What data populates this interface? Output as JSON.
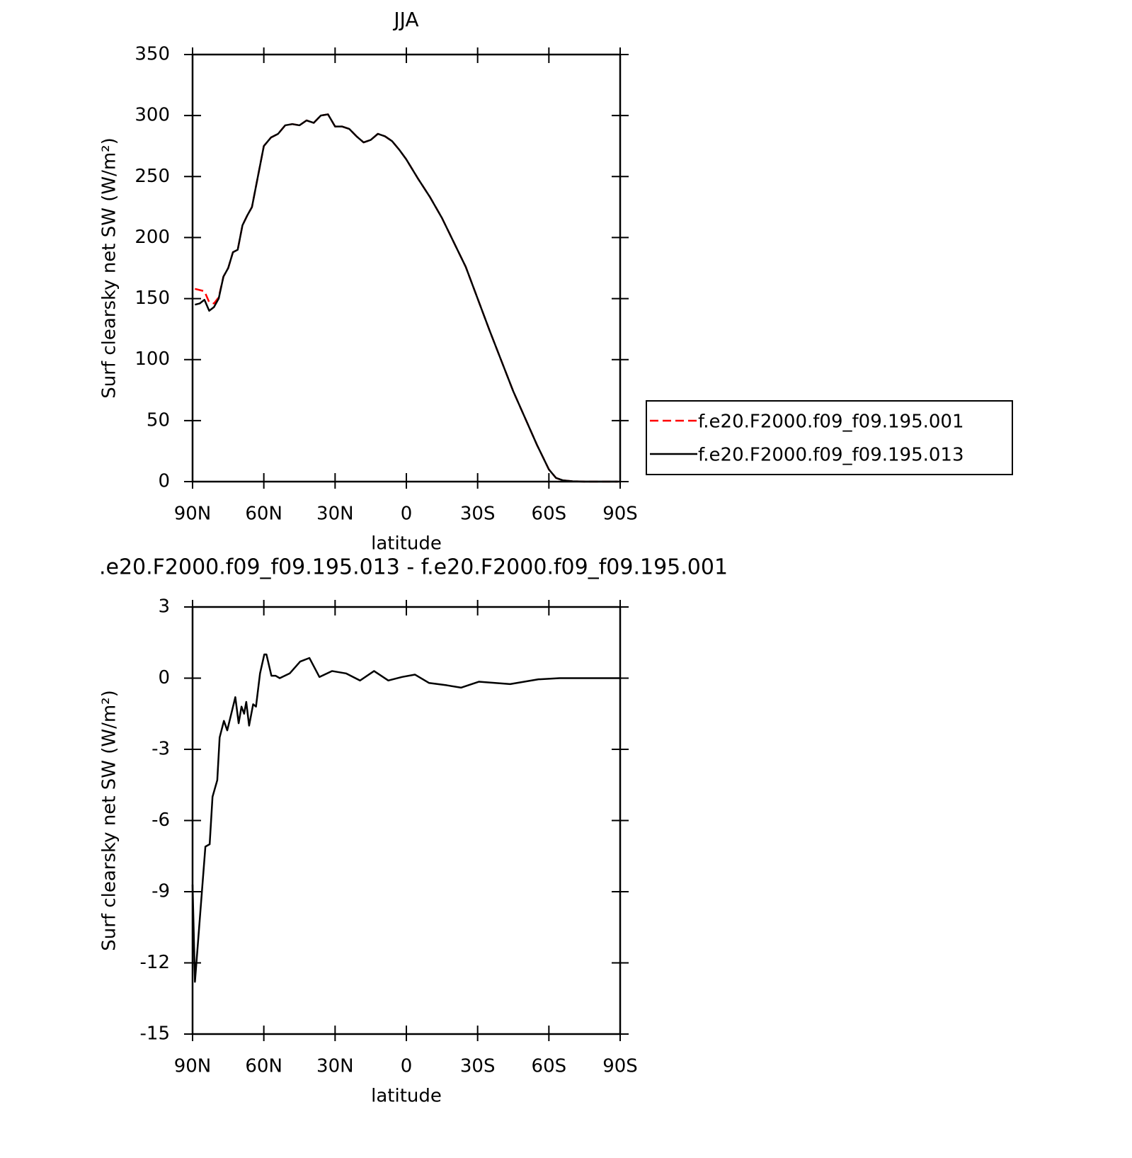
{
  "chart_data": [
    {
      "type": "line",
      "title": "JJA",
      "xlabel": "latitude",
      "ylabel": "Surf clearsky net SW (W/m²)",
      "x": [
        89,
        87,
        85,
        83,
        81,
        79,
        77,
        75,
        73,
        71,
        69,
        67,
        65,
        63,
        60,
        57,
        54,
        51,
        48,
        45,
        42,
        39,
        36,
        33,
        30,
        27,
        24,
        21,
        18,
        15,
        12,
        9,
        6,
        3,
        0,
        -5,
        -10,
        -15,
        -20,
        -25,
        -30,
        -35,
        -40,
        -45,
        -50,
        -55,
        -60,
        -63,
        -66,
        -70,
        -75,
        -80,
        -85,
        -89
      ],
      "series": [
        {
          "name": "f.e20.F2000.f09_f09.195.001",
          "color": "#ff0000",
          "dashed": true,
          "values": [
            158,
            157,
            156,
            147,
            146,
            151,
            168,
            175,
            188,
            190,
            210,
            218,
            225,
            245,
            275,
            282,
            285,
            292,
            293,
            292,
            296,
            294,
            300,
            301,
            291,
            291,
            289,
            283,
            278,
            280,
            285,
            283,
            279,
            272,
            264,
            248,
            233,
            216,
            196,
            176,
            150,
            124,
            99,
            74,
            52,
            30,
            10,
            3,
            1,
            0.3,
            0,
            0,
            0,
            0
          ]
        },
        {
          "name": "f.e20.F2000.f09_f09.195.013",
          "color": "#000000",
          "dashed": false,
          "values": [
            145,
            146,
            149,
            140,
            143,
            150,
            168,
            175,
            188,
            190,
            210,
            218,
            225,
            245,
            275,
            282,
            285,
            292,
            293,
            292,
            296,
            294,
            300,
            301,
            291,
            291,
            289,
            283,
            278,
            280,
            285,
            283,
            279,
            272,
            264,
            248,
            233,
            216,
            196,
            176,
            150,
            124,
            99,
            74,
            52,
            30,
            10,
            3,
            1,
            0.3,
            0,
            0,
            0,
            0
          ]
        }
      ],
      "xlim": [
        90,
        -90
      ],
      "xticks": [
        {
          "value": 90,
          "label": "90N"
        },
        {
          "value": 60,
          "label": "60N"
        },
        {
          "value": 30,
          "label": "30N"
        },
        0,
        {
          "value": -30,
          "label": "30S"
        },
        {
          "value": -60,
          "label": "60S"
        },
        {
          "value": -90,
          "label": "90S"
        }
      ],
      "ylim": [
        0,
        350
      ],
      "yticks": [
        0,
        50,
        100,
        150,
        200,
        250,
        300,
        350
      ]
    },
    {
      "type": "line",
      "title": ".e20.F2000.f09_f09.195.013 - f.e20.F2000.f09_f09.195.001",
      "xlabel": "latitude",
      "ylabel": "Surf clearsky net SW (W/m²)",
      "x": [
        90,
        89,
        84.6,
        82.8,
        81.6,
        79.6,
        78.6,
        76.8,
        75.4,
        72,
        70.6,
        69.4,
        68.3,
        67.4,
        66.2,
        64.5,
        63.3,
        61.6,
        59.8,
        58.9,
        56.8,
        55,
        53.3,
        49.1,
        44.7,
        40.8,
        36.6,
        31.3,
        25.4,
        19.5,
        13.6,
        7.6,
        1.8,
        -3.6,
        -9.5,
        -17,
        -23,
        -30.5,
        -43.7,
        -55.6,
        -64.5,
        -90
      ],
      "series": [
        {
          "color": "#000000",
          "dashed": false,
          "values": [
            -8.7,
            -12.8,
            -7.1,
            -7.0,
            -5,
            -4.3,
            -2.5,
            -1.8,
            -2.2,
            -0.8,
            -1.9,
            -1.2,
            -1.5,
            -1.0,
            -2.0,
            -1.1,
            -1.2,
            0.2,
            1.0,
            1.0,
            0.1,
            0.1,
            0,
            0.2,
            0.7,
            0.85,
            0.05,
            0.3,
            0.2,
            -0.1,
            0.3,
            -0.1,
            0.05,
            0.15,
            -0.2,
            -0.3,
            -0.4,
            -0.15,
            -0.25,
            -0.05,
            0,
            0
          ]
        }
      ],
      "xlim": [
        90,
        -90
      ],
      "xticks": [
        {
          "value": 90,
          "label": "90N"
        },
        {
          "value": 60,
          "label": "60N"
        },
        {
          "value": 30,
          "label": "30N"
        },
        0,
        {
          "value": -30,
          "label": "30S"
        },
        {
          "value": -60,
          "label": "60S"
        },
        {
          "value": -90,
          "label": "90S"
        }
      ],
      "ylim": [
        -15,
        3
      ],
      "yticks": [
        -15,
        -12,
        -9,
        -6,
        -3,
        0,
        3
      ]
    }
  ]
}
